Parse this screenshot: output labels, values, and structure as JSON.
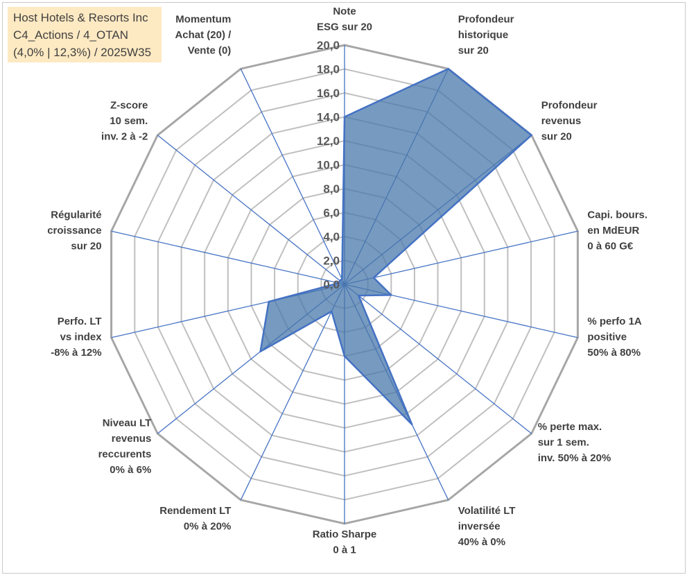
{
  "info": {
    "line1": "Host Hotels & Resorts Inc",
    "line2": "C4_Actions / 4_OTAN",
    "line3": "(4,0% | 12,3%) / 2025W35"
  },
  "colors": {
    "fill": "#4a78ab",
    "stroke": "#4472c4",
    "ring": "#bfbfbf",
    "ring_outer": "#a6a6a6",
    "spoke": "#4472c4"
  },
  "chart_data": {
    "type": "radar",
    "title": "",
    "rmin": 0,
    "rmax": 20,
    "step": 2,
    "tick_labels": [
      "0,0",
      "2,0",
      "4,0",
      "6,0",
      "8,0",
      "10,0",
      "12,0",
      "14,0",
      "16,0",
      "18,0",
      "20,0"
    ],
    "axes": [
      [
        "Note",
        "ESG sur 20"
      ],
      [
        "Profondeur",
        "historique",
        "sur 20"
      ],
      [
        "Profondeur",
        "revenus",
        "sur 20"
      ],
      [
        "Capi. bours.",
        "en MdEUR",
        "0 à 60 G€"
      ],
      [
        "% perfo 1A",
        "positive",
        "50% à 80%"
      ],
      [
        "% perte max.",
        "sur 1 sem.",
        "inv. 50% à 20%"
      ],
      [
        "Volatilité LT",
        "inversée",
        "40% à 0%"
      ],
      [
        "Ratio Sharpe",
        "0 à 1"
      ],
      [
        "Rendement LT",
        "0% à 20%"
      ],
      [
        "Niveau LT",
        "revenus",
        "reccurents",
        "0% à 6%"
      ],
      [
        "Perfo. LT",
        "vs index",
        "-8% à 12%"
      ],
      [
        "Régularité",
        "croissance",
        "sur 20"
      ],
      [
        "Z-score",
        "10 sem.",
        "inv. 2 à -2"
      ],
      [
        "Momentum",
        "Achat (20) /",
        "Vente (0)"
      ]
    ],
    "series": [
      {
        "values": [
          14.0,
          20.0,
          20.0,
          2.5,
          4.0,
          1.5,
          13.0,
          6.0,
          2.5,
          9.0,
          6.5,
          0.5,
          0.5,
          0.5
        ]
      }
    ]
  }
}
